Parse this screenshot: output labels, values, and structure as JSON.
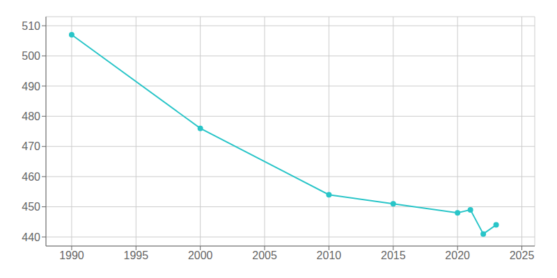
{
  "chart_data": {
    "type": "line",
    "x": [
      1990,
      2000,
      2010,
      2015,
      2020,
      2021,
      2022,
      2023
    ],
    "values": [
      507,
      476,
      454,
      451,
      448,
      449,
      441,
      444
    ],
    "color": "#29C5C8",
    "xlim": [
      1988,
      2026
    ],
    "ylim": [
      437,
      513
    ],
    "xticks": [
      1990,
      1995,
      2000,
      2005,
      2010,
      2015,
      2020,
      2025
    ],
    "yticks": [
      440,
      450,
      460,
      470,
      480,
      490,
      500,
      510
    ],
    "grid": true,
    "marker": "o"
  }
}
